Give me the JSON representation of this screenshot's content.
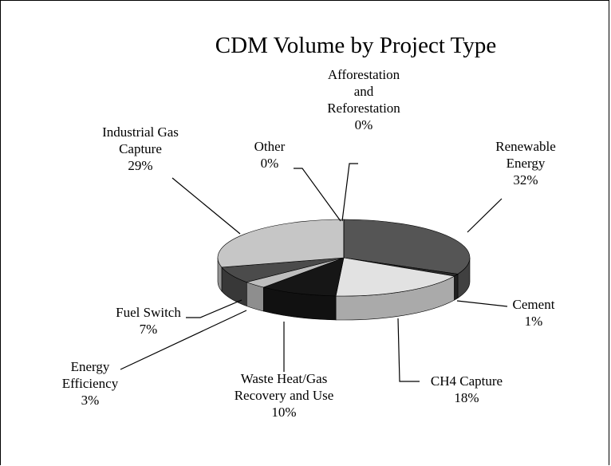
{
  "chart_data": {
    "type": "pie",
    "title": "CDM Volume by Project Type",
    "categories": [
      "Renewable Energy",
      "Cement",
      "CH4 Capture",
      "Waste Heat/Gas Recovery and Use",
      "Energy Efficiency",
      "Fuel Switch",
      "Industrial Gas Capture",
      "Other",
      "Afforestation and Reforestation"
    ],
    "values": [
      32,
      1,
      18,
      10,
      3,
      7,
      29,
      0,
      0
    ],
    "value_labels": [
      "32%",
      "1%",
      "18%",
      "10%",
      "3%",
      "7%",
      "29%",
      "0%",
      "0%"
    ],
    "colors": [
      "#555555",
      "#2a2a2a",
      "#e2e2e2",
      "#161616",
      "#bdbdbd",
      "#4b4b4b",
      "#c6c6c6",
      "#8a8a8a",
      "#9a9a9a"
    ]
  }
}
